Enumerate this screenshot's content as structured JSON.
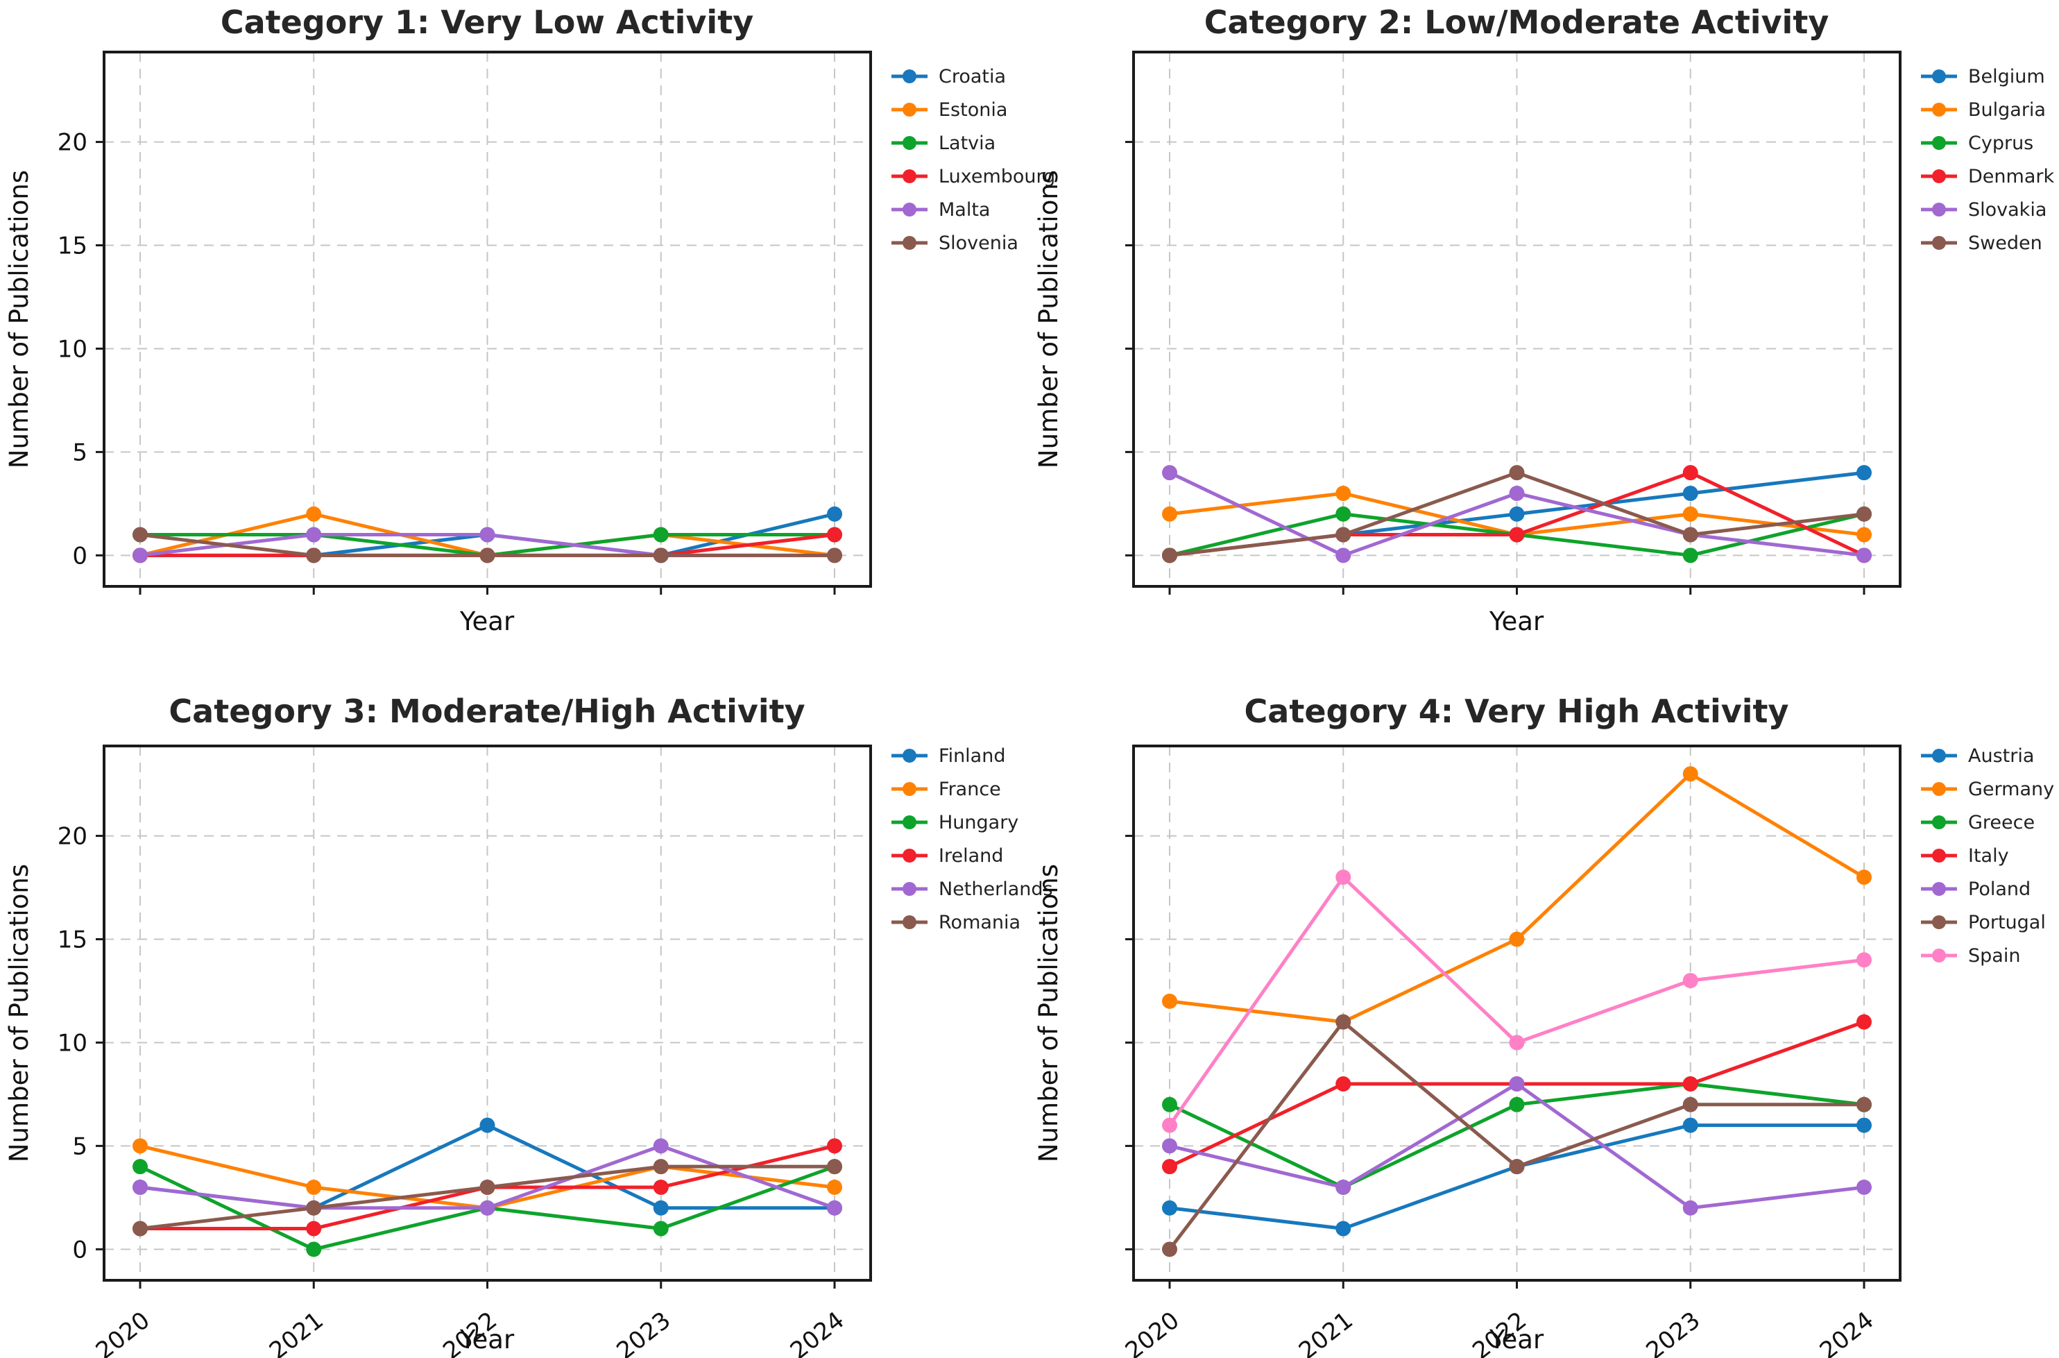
{
  "page": {
    "background": "#ffffff"
  },
  "shared": {
    "xlabel": "Year",
    "ylabel": "Number of Publications",
    "years": [
      2020,
      2021,
      2022,
      2023,
      2024
    ],
    "yticks": [
      0,
      5,
      10,
      15,
      20
    ],
    "grid_color": "#c6c6c6",
    "spine_color": "#1a1a1a"
  },
  "palette": {
    "blue": "#1778bd",
    "orange": "#ff8103",
    "green": "#0ea32b",
    "red": "#f1202a",
    "purple": "#a168d1",
    "brown": "#8a5a4e",
    "pink": "#ff80c6"
  },
  "chart_data": [
    {
      "type": "line",
      "title": "Category 1: Very Low Activity",
      "xlabel": "Year",
      "ylabel": "Number of Publications",
      "x": [
        2020,
        2021,
        2022,
        2023,
        2024
      ],
      "yticks": [
        0,
        5,
        10,
        15,
        20
      ],
      "ylim": [
        -1.5,
        24.35
      ],
      "grid": true,
      "legend_position": "right-outside",
      "ytick_labels_visible": true,
      "xtick_labels_visible": false,
      "series": [
        {
          "name": "Croatia",
          "color": "#1778bd",
          "values": [
            0,
            0,
            1,
            0,
            2
          ]
        },
        {
          "name": "Estonia",
          "color": "#ff8103",
          "values": [
            0,
            2,
            0,
            1,
            0
          ]
        },
        {
          "name": "Latvia",
          "color": "#0ea32b",
          "values": [
            1,
            1,
            0,
            1,
            1
          ]
        },
        {
          "name": "Luxembourg",
          "color": "#f1202a",
          "values": [
            0,
            0,
            0,
            0,
            1
          ]
        },
        {
          "name": "Malta",
          "color": "#a168d1",
          "values": [
            0,
            1,
            1,
            0,
            0
          ]
        },
        {
          "name": "Slovenia",
          "color": "#8a5a4e",
          "values": [
            1,
            0,
            0,
            0,
            0
          ]
        }
      ]
    },
    {
      "type": "line",
      "title": "Category 2: Low/Moderate Activity",
      "xlabel": "Year",
      "ylabel": "Number of Publications",
      "x": [
        2020,
        2021,
        2022,
        2023,
        2024
      ],
      "yticks": [
        0,
        5,
        10,
        15,
        20
      ],
      "ylim": [
        -1.5,
        24.35
      ],
      "grid": true,
      "legend_position": "right-outside",
      "ytick_labels_visible": false,
      "xtick_labels_visible": false,
      "series": [
        {
          "name": "Belgium",
          "color": "#1778bd",
          "values": [
            0,
            1,
            2,
            3,
            4
          ]
        },
        {
          "name": "Bulgaria",
          "color": "#ff8103",
          "values": [
            2,
            3,
            1,
            2,
            1
          ]
        },
        {
          "name": "Cyprus",
          "color": "#0ea32b",
          "values": [
            0,
            2,
            1,
            0,
            2
          ]
        },
        {
          "name": "Denmark",
          "color": "#f1202a",
          "values": [
            0,
            1,
            1,
            4,
            0
          ]
        },
        {
          "name": "Slovakia",
          "color": "#a168d1",
          "values": [
            4,
            0,
            3,
            1,
            0
          ]
        },
        {
          "name": "Sweden",
          "color": "#8a5a4e",
          "values": [
            0,
            1,
            4,
            1,
            2
          ]
        }
      ]
    },
    {
      "type": "line",
      "title": "Category 3: Moderate/High Activity",
      "xlabel": "Year",
      "ylabel": "Number of Publications",
      "x": [
        2020,
        2021,
        2022,
        2023,
        2024
      ],
      "yticks": [
        0,
        5,
        10,
        15,
        20
      ],
      "ylim": [
        -1.5,
        24.35
      ],
      "grid": true,
      "legend_position": "right-outside",
      "ytick_labels_visible": true,
      "xtick_labels_visible": true,
      "series": [
        {
          "name": "Finland",
          "color": "#1778bd",
          "values": [
            3,
            2,
            6,
            2,
            2
          ]
        },
        {
          "name": "France",
          "color": "#ff8103",
          "values": [
            5,
            3,
            2,
            4,
            3
          ]
        },
        {
          "name": "Hungary",
          "color": "#0ea32b",
          "values": [
            4,
            0,
            2,
            1,
            4
          ]
        },
        {
          "name": "Ireland",
          "color": "#f1202a",
          "values": [
            1,
            1,
            3,
            3,
            5
          ]
        },
        {
          "name": "Netherlands",
          "color": "#a168d1",
          "values": [
            3,
            2,
            2,
            5,
            2
          ]
        },
        {
          "name": "Romania",
          "color": "#8a5a4e",
          "values": [
            1,
            2,
            3,
            4,
            4
          ]
        }
      ]
    },
    {
      "type": "line",
      "title": "Category 4: Very High Activity",
      "xlabel": "Year",
      "ylabel": "Number of Publications",
      "x": [
        2020,
        2021,
        2022,
        2023,
        2024
      ],
      "yticks": [
        0,
        5,
        10,
        15,
        20
      ],
      "ylim": [
        -1.5,
        24.35
      ],
      "grid": true,
      "legend_position": "right-outside",
      "ytick_labels_visible": false,
      "xtick_labels_visible": true,
      "series": [
        {
          "name": "Austria",
          "color": "#1778bd",
          "values": [
            2,
            1,
            4,
            6,
            6
          ]
        },
        {
          "name": "Germany",
          "color": "#ff8103",
          "values": [
            12,
            11,
            15,
            23,
            18
          ]
        },
        {
          "name": "Greece",
          "color": "#0ea32b",
          "values": [
            7,
            3,
            7,
            8,
            7
          ]
        },
        {
          "name": "Italy",
          "color": "#f1202a",
          "values": [
            4,
            8,
            8,
            8,
            11
          ]
        },
        {
          "name": "Poland",
          "color": "#a168d1",
          "values": [
            5,
            3,
            8,
            2,
            3
          ]
        },
        {
          "name": "Portugal",
          "color": "#8a5a4e",
          "values": [
            0,
            11,
            4,
            7,
            7
          ]
        },
        {
          "name": "Spain",
          "color": "#ff80c6",
          "values": [
            6,
            18,
            10,
            13,
            14
          ]
        }
      ]
    }
  ]
}
